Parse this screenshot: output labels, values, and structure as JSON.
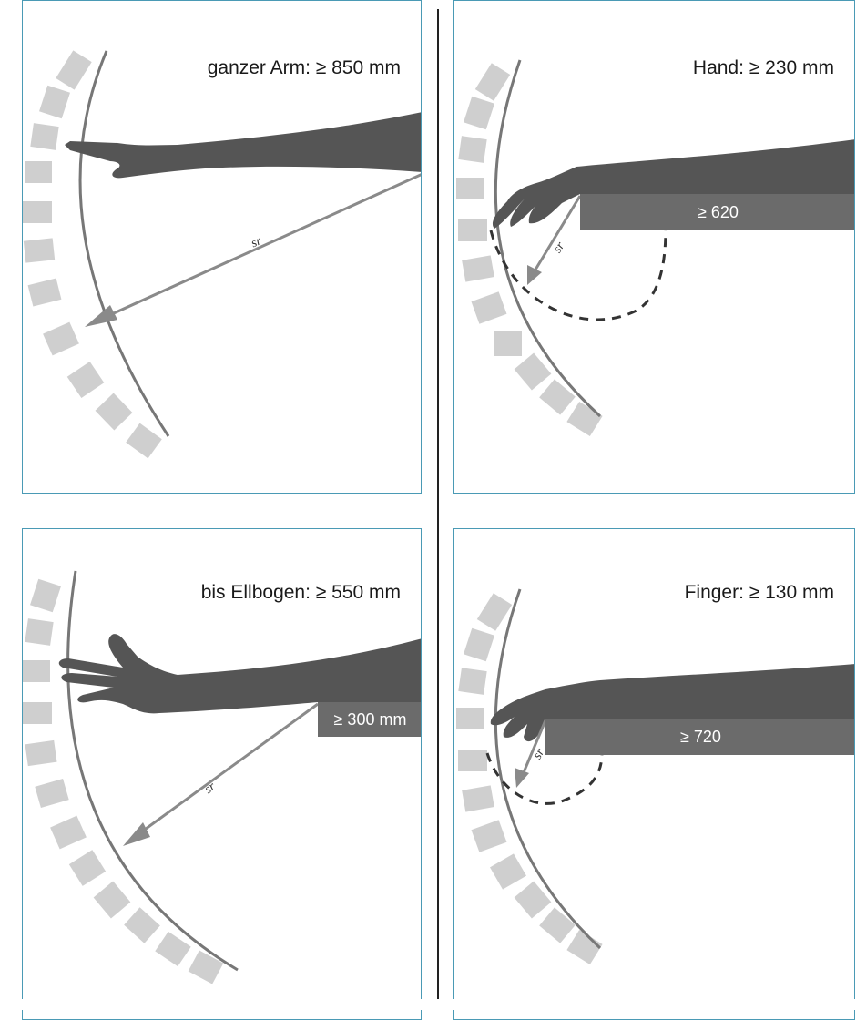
{
  "colors": {
    "frame": "#4a9ab5",
    "arm": "#555555",
    "bar": "#6b6b6b",
    "tile": "#cfcfcf",
    "arc": "#777777",
    "arrow": "#8a8a8a"
  },
  "panels": [
    {
      "title": "ganzer Arm: ≥ 850 mm",
      "radius_label": "sr",
      "bar_label": ""
    },
    {
      "title": "Hand: ≥ 230 mm",
      "radius_label": "sr",
      "bar_label": "≥ 620"
    },
    {
      "title": "bis Ellbogen: ≥ 550 mm",
      "radius_label": "sr",
      "bar_label": "≥ 300 mm"
    },
    {
      "title": "Finger: ≥ 130 mm",
      "radius_label": "sr",
      "bar_label": "≥ 720"
    }
  ]
}
